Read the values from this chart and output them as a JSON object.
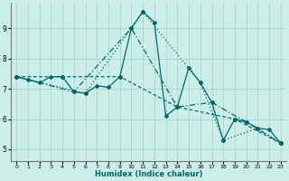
{
  "xlabel": "Humidex (Indice chaleur)",
  "background_color": "#cceee8",
  "grid_color": "#aad4ce",
  "line_color": "#006868",
  "xlim": [
    -0.5,
    23.5
  ],
  "ylim": [
    4.6,
    9.85
  ],
  "yticks": [
    5,
    6,
    7,
    8,
    9
  ],
  "xticks": [
    0,
    1,
    2,
    3,
    4,
    5,
    6,
    7,
    8,
    9,
    10,
    11,
    12,
    13,
    14,
    15,
    16,
    17,
    18,
    19,
    20,
    21,
    22,
    23
  ],
  "series1": [
    [
      0,
      7.4
    ],
    [
      1,
      7.3
    ],
    [
      2,
      7.2
    ],
    [
      3,
      7.4
    ],
    [
      4,
      7.4
    ],
    [
      5,
      6.9
    ],
    [
      6,
      6.85
    ],
    [
      7,
      7.1
    ],
    [
      8,
      7.05
    ],
    [
      9,
      7.4
    ],
    [
      10,
      9.0
    ],
    [
      11,
      9.55
    ],
    [
      12,
      9.2
    ],
    [
      13,
      6.1
    ],
    [
      14,
      6.4
    ],
    [
      15,
      7.7
    ],
    [
      16,
      7.2
    ],
    [
      17,
      6.55
    ],
    [
      18,
      5.3
    ],
    [
      19,
      6.0
    ],
    [
      20,
      5.9
    ],
    [
      21,
      5.7
    ],
    [
      22,
      5.65
    ],
    [
      23,
      5.2
    ]
  ],
  "series2": [
    [
      0,
      7.4
    ],
    [
      4,
      7.4
    ],
    [
      9,
      7.4
    ],
    [
      14,
      6.4
    ],
    [
      19,
      6.0
    ],
    [
      23,
      5.2
    ]
  ],
  "series3": [
    [
      0,
      7.4
    ],
    [
      5,
      6.9
    ],
    [
      10,
      9.0
    ],
    [
      14,
      6.4
    ],
    [
      17,
      6.55
    ],
    [
      20,
      5.9
    ],
    [
      23,
      5.2
    ]
  ],
  "series4": [
    [
      0,
      7.4
    ],
    [
      6,
      6.85
    ],
    [
      11,
      9.55
    ],
    [
      16,
      7.2
    ],
    [
      18,
      5.3
    ],
    [
      21,
      5.7
    ],
    [
      23,
      5.2
    ]
  ]
}
